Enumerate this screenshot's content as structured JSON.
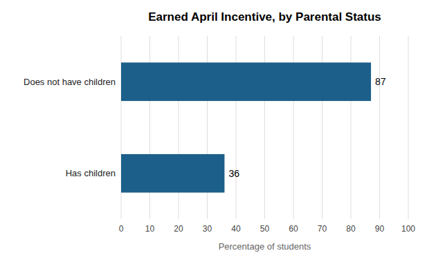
{
  "chart_data": {
    "type": "bar",
    "orientation": "horizontal",
    "title": "Earned April Incentive, by Parental Status",
    "categories": [
      "Has children",
      "Does not have children"
    ],
    "values": [
      36,
      87
    ],
    "color": "#1c5f8a",
    "data_labels": true,
    "xlabel": "Percentage of students",
    "xlim": [
      0,
      100
    ],
    "xticks": [
      0,
      10,
      20,
      30,
      40,
      50,
      60,
      70,
      80,
      90,
      100
    ],
    "grid": true
  }
}
